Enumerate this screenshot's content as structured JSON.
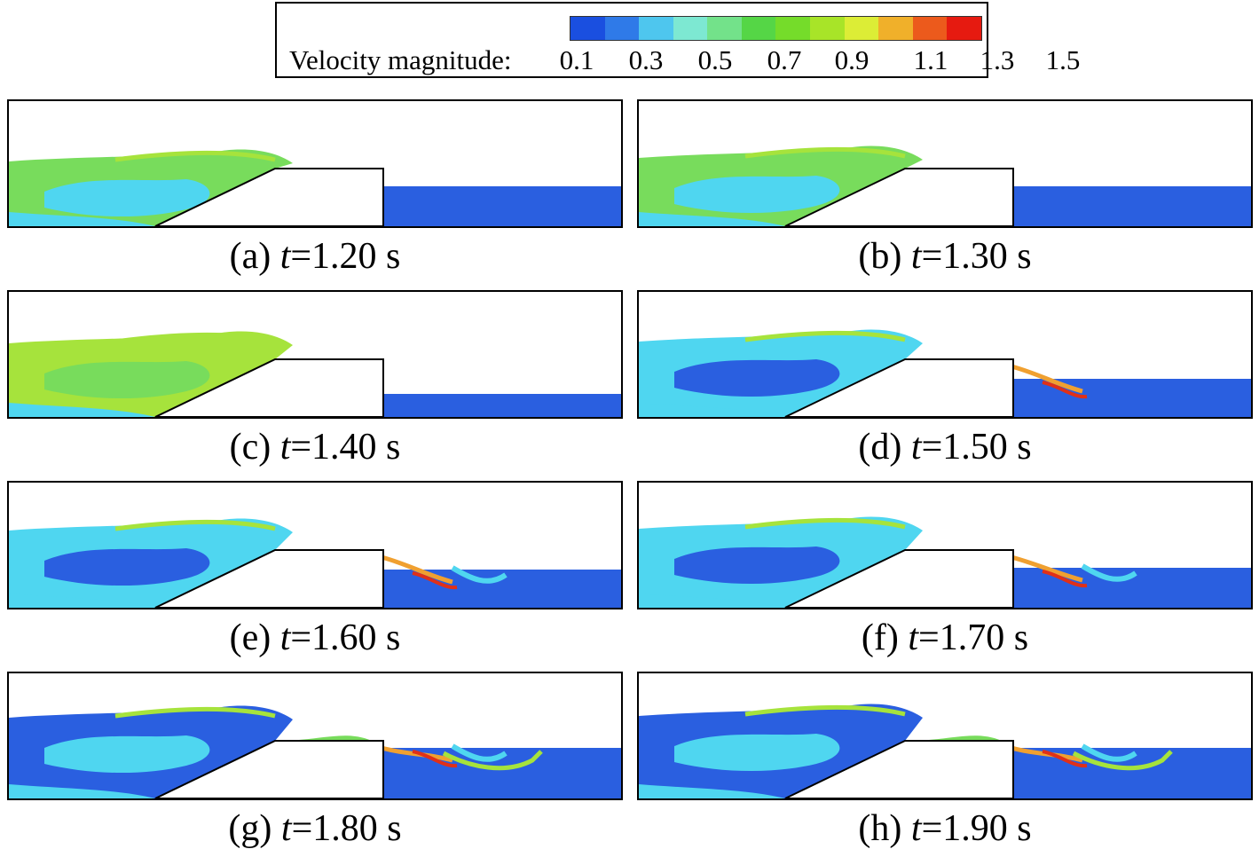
{
  "legend": {
    "title": "Velocity magnitude:",
    "ticks": [
      "0.1",
      "0.3",
      "0.5",
      "0.7",
      "0.9",
      "1.1",
      "1.3",
      "1.5"
    ],
    "colors": [
      "#1a4fe0",
      "#2f7ae8",
      "#4ec6ee",
      "#7de8d2",
      "#73e28a",
      "#55d646",
      "#75dc2a",
      "#a8e428",
      "#dced36",
      "#f0b02a",
      "#ec5a1c",
      "#e61a10"
    ]
  },
  "colors": {
    "low": "#2a5fe0",
    "cyan": "#4fd6f0",
    "teal": "#7de0c8",
    "green": "#78dc5c",
    "yellowgreen": "#a6e33c",
    "orange": "#f0a030",
    "red": "#e03018",
    "dark": "#1e40d0"
  },
  "panels": [
    {
      "letter": "(a)",
      "t": "t",
      "value": "=1.20 s",
      "stage": 0
    },
    {
      "letter": "(b)",
      "t": "t",
      "value": "=1.30 s",
      "stage": 1
    },
    {
      "letter": "(c)",
      "t": "t",
      "value": "=1.40 s",
      "stage": 2
    },
    {
      "letter": "(d)",
      "t": "t",
      "value": "=1.50 s",
      "stage": 3
    },
    {
      "letter": "(e)",
      "t": "t",
      "value": "=1.60 s",
      "stage": 4
    },
    {
      "letter": "(f)",
      "t": "t",
      "value": "=1.70 s",
      "stage": 5
    },
    {
      "letter": "(g)",
      "t": "t",
      "value": "=1.80 s",
      "stage": 6
    },
    {
      "letter": "(h)",
      "t": "t",
      "value": "=1.90 s",
      "stage": 7
    }
  ]
}
